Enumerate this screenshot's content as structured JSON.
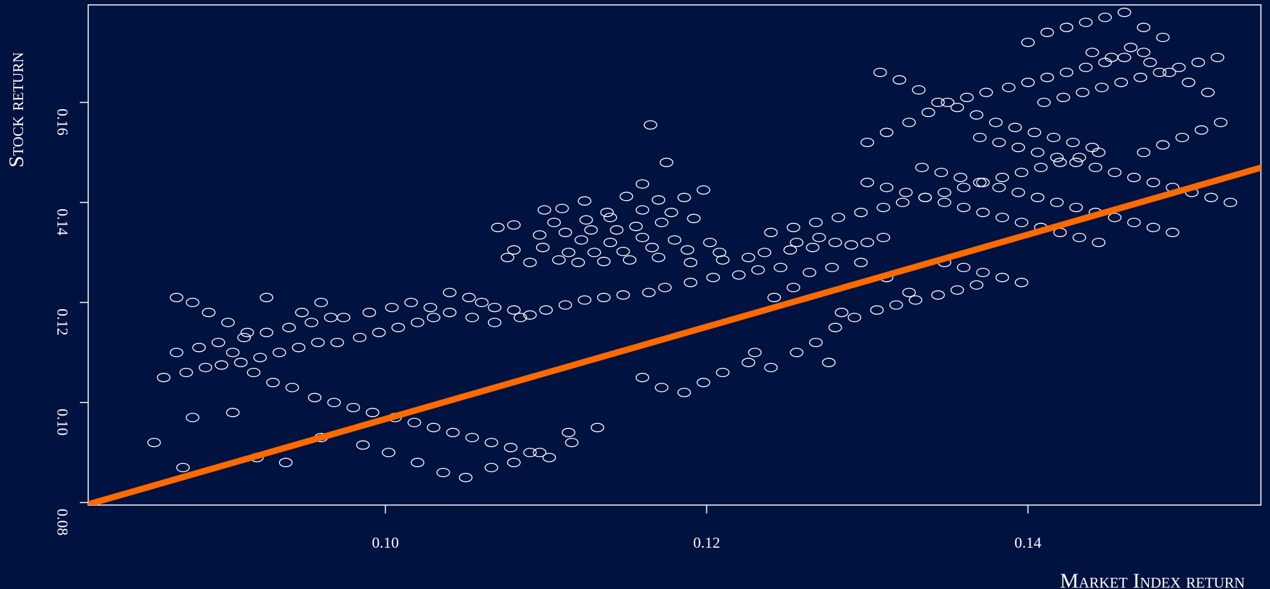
{
  "chart_data": {
    "type": "scatter",
    "title": "",
    "xlabel": "Market Index return",
    "ylabel": "Stock return",
    "xlim": [
      0.0815,
      0.1545
    ],
    "ylim": [
      0.0795,
      0.1795
    ],
    "xticks": [
      0.1,
      0.12,
      0.14
    ],
    "xtick_labels": [
      "0.10",
      "0.12",
      "0.14"
    ],
    "yticks": [
      0.08,
      0.1,
      0.12,
      0.14,
      0.16
    ],
    "ytick_labels": [
      "0.08",
      "0.10",
      "0.12",
      "0.14",
      "0.16"
    ],
    "grid": false,
    "fit_line": {
      "intercept": 0.0045,
      "slope": 0.922
    },
    "colors": {
      "background": "#001240",
      "points": "#ffffff",
      "fit_line": "#ff6a00",
      "axes": "#ffffff"
    },
    "series": [
      {
        "marker": "open-ellipse",
        "points": [
          [
            0.1175,
            0.148
          ],
          [
            0.1165,
            0.1555
          ],
          [
            0.116,
            0.1437
          ],
          [
            0.1198,
            0.1425
          ],
          [
            0.1186,
            0.141
          ],
          [
            0.115,
            0.1412
          ],
          [
            0.117,
            0.1405
          ],
          [
            0.1124,
            0.1403
          ],
          [
            0.1138,
            0.138
          ],
          [
            0.111,
            0.1388
          ],
          [
            0.1099,
            0.1385
          ],
          [
            0.1178,
            0.138
          ],
          [
            0.116,
            0.1385
          ],
          [
            0.114,
            0.137
          ],
          [
            0.1125,
            0.1365
          ],
          [
            0.1105,
            0.136
          ],
          [
            0.108,
            0.1355
          ],
          [
            0.107,
            0.135
          ],
          [
            0.1192,
            0.1368
          ],
          [
            0.1172,
            0.136
          ],
          [
            0.1156,
            0.1352
          ],
          [
            0.1144,
            0.1345
          ],
          [
            0.1128,
            0.1345
          ],
          [
            0.1112,
            0.134
          ],
          [
            0.1096,
            0.1335
          ],
          [
            0.1122,
            0.1325
          ],
          [
            0.114,
            0.132
          ],
          [
            0.116,
            0.133
          ],
          [
            0.118,
            0.1325
          ],
          [
            0.1202,
            0.132
          ],
          [
            0.1208,
            0.13
          ],
          [
            0.1188,
            0.1305
          ],
          [
            0.1166,
            0.131
          ],
          [
            0.1148,
            0.1302
          ],
          [
            0.113,
            0.13
          ],
          [
            0.1114,
            0.13
          ],
          [
            0.1098,
            0.131
          ],
          [
            0.108,
            0.1305
          ],
          [
            0.1076,
            0.129
          ],
          [
            0.109,
            0.128
          ],
          [
            0.1108,
            0.1285
          ],
          [
            0.112,
            0.128
          ],
          [
            0.1136,
            0.1282
          ],
          [
            0.1152,
            0.1285
          ],
          [
            0.117,
            0.129
          ],
          [
            0.119,
            0.128
          ],
          [
            0.121,
            0.1285
          ],
          [
            0.1226,
            0.129
          ],
          [
            0.1236,
            0.13
          ],
          [
            0.1252,
            0.1305
          ],
          [
            0.1266,
            0.131
          ],
          [
            0.128,
            0.132
          ],
          [
            0.129,
            0.1315
          ],
          [
            0.13,
            0.132
          ],
          [
            0.131,
            0.133
          ],
          [
            0.127,
            0.133
          ],
          [
            0.1256,
            0.132
          ],
          [
            0.104,
            0.122
          ],
          [
            0.1052,
            0.121
          ],
          [
            0.106,
            0.12
          ],
          [
            0.1068,
            0.119
          ],
          [
            0.108,
            0.1185
          ],
          [
            0.109,
            0.1175
          ],
          [
            0.11,
            0.1185
          ],
          [
            0.1112,
            0.1195
          ],
          [
            0.1124,
            0.1205
          ],
          [
            0.1136,
            0.121
          ],
          [
            0.1148,
            0.1215
          ],
          [
            0.1164,
            0.122
          ],
          [
            0.1174,
            0.123
          ],
          [
            0.119,
            0.124
          ],
          [
            0.1204,
            0.125
          ],
          [
            0.122,
            0.1255
          ],
          [
            0.1232,
            0.1265
          ],
          [
            0.1246,
            0.127
          ],
          [
            0.0862,
            0.105
          ],
          [
            0.0876,
            0.106
          ],
          [
            0.0888,
            0.107
          ],
          [
            0.0898,
            0.1075
          ],
          [
            0.091,
            0.108
          ],
          [
            0.0922,
            0.109
          ],
          [
            0.0934,
            0.11
          ],
          [
            0.0946,
            0.111
          ],
          [
            0.0958,
            0.112
          ],
          [
            0.097,
            0.112
          ],
          [
            0.0984,
            0.113
          ],
          [
            0.0996,
            0.114
          ],
          [
            0.1008,
            0.115
          ],
          [
            0.102,
            0.116
          ],
          [
            0.103,
            0.117
          ],
          [
            0.087,
            0.11
          ],
          [
            0.0884,
            0.111
          ],
          [
            0.0896,
            0.112
          ],
          [
            0.0912,
            0.113
          ],
          [
            0.0926,
            0.114
          ],
          [
            0.094,
            0.115
          ],
          [
            0.0954,
            0.116
          ],
          [
            0.0966,
            0.117
          ],
          [
            0.0905,
            0.11
          ],
          [
            0.0918,
            0.106
          ],
          [
            0.093,
            0.104
          ],
          [
            0.0942,
            0.103
          ],
          [
            0.0956,
            0.101
          ],
          [
            0.0968,
            0.1
          ],
          [
            0.098,
            0.099
          ],
          [
            0.0992,
            0.098
          ],
          [
            0.1006,
            0.097
          ],
          [
            0.1018,
            0.096
          ],
          [
            0.103,
            0.095
          ],
          [
            0.1042,
            0.094
          ],
          [
            0.1054,
            0.093
          ],
          [
            0.1066,
            0.092
          ],
          [
            0.1078,
            0.091
          ],
          [
            0.109,
            0.09
          ],
          [
            0.1102,
            0.089
          ],
          [
            0.1116,
            0.092
          ],
          [
            0.0856,
            0.092
          ],
          [
            0.0874,
            0.087
          ],
          [
            0.088,
            0.097
          ],
          [
            0.0905,
            0.098
          ],
          [
            0.092,
            0.089
          ],
          [
            0.0938,
            0.088
          ],
          [
            0.096,
            0.093
          ],
          [
            0.0986,
            0.0915
          ],
          [
            0.1002,
            0.09
          ],
          [
            0.102,
            0.088
          ],
          [
            0.1036,
            0.086
          ],
          [
            0.105,
            0.085
          ],
          [
            0.1066,
            0.087
          ],
          [
            0.108,
            0.088
          ],
          [
            0.1096,
            0.09
          ],
          [
            0.1114,
            0.094
          ],
          [
            0.1132,
            0.095
          ],
          [
            0.116,
            0.105
          ],
          [
            0.1172,
            0.103
          ],
          [
            0.1186,
            0.102
          ],
          [
            0.1198,
            0.104
          ],
          [
            0.121,
            0.106
          ],
          [
            0.1226,
            0.108
          ],
          [
            0.124,
            0.107
          ],
          [
            0.1256,
            0.11
          ],
          [
            0.1268,
            0.112
          ],
          [
            0.128,
            0.115
          ],
          [
            0.1292,
            0.117
          ],
          [
            0.1306,
            0.1185
          ],
          [
            0.1318,
            0.1195
          ],
          [
            0.133,
            0.1205
          ],
          [
            0.1344,
            0.1215
          ],
          [
            0.1356,
            0.1225
          ],
          [
            0.1368,
            0.1235
          ],
          [
            0.124,
            0.134
          ],
          [
            0.1254,
            0.135
          ],
          [
            0.1268,
            0.136
          ],
          [
            0.1282,
            0.137
          ],
          [
            0.1296,
            0.138
          ],
          [
            0.131,
            0.139
          ],
          [
            0.1322,
            0.14
          ],
          [
            0.1336,
            0.141
          ],
          [
            0.1348,
            0.142
          ],
          [
            0.136,
            0.143
          ],
          [
            0.1372,
            0.144
          ],
          [
            0.1384,
            0.145
          ],
          [
            0.1396,
            0.146
          ],
          [
            0.1408,
            0.147
          ],
          [
            0.142,
            0.148
          ],
          [
            0.1432,
            0.149
          ],
          [
            0.1444,
            0.15
          ],
          [
            0.13,
            0.152
          ],
          [
            0.1312,
            0.154
          ],
          [
            0.1326,
            0.156
          ],
          [
            0.1338,
            0.158
          ],
          [
            0.135,
            0.16
          ],
          [
            0.1362,
            0.161
          ],
          [
            0.1374,
            0.162
          ],
          [
            0.1388,
            0.163
          ],
          [
            0.14,
            0.164
          ],
          [
            0.1412,
            0.165
          ],
          [
            0.1424,
            0.166
          ],
          [
            0.1436,
            0.167
          ],
          [
            0.1448,
            0.168
          ],
          [
            0.146,
            0.169
          ],
          [
            0.1472,
            0.17
          ],
          [
            0.14,
            0.172
          ],
          [
            0.1412,
            0.174
          ],
          [
            0.1424,
            0.175
          ],
          [
            0.1436,
            0.176
          ],
          [
            0.1448,
            0.177
          ],
          [
            0.146,
            0.178
          ],
          [
            0.1472,
            0.175
          ],
          [
            0.1484,
            0.173
          ],
          [
            0.144,
            0.17
          ],
          [
            0.1452,
            0.169
          ],
          [
            0.1464,
            0.171
          ],
          [
            0.1476,
            0.168
          ],
          [
            0.1488,
            0.166
          ],
          [
            0.15,
            0.164
          ],
          [
            0.1512,
            0.162
          ],
          [
            0.141,
            0.16
          ],
          [
            0.1422,
            0.161
          ],
          [
            0.1434,
            0.162
          ],
          [
            0.1446,
            0.163
          ],
          [
            0.1458,
            0.164
          ],
          [
            0.147,
            0.165
          ],
          [
            0.1482,
            0.166
          ],
          [
            0.1494,
            0.167
          ],
          [
            0.1506,
            0.168
          ],
          [
            0.1518,
            0.169
          ],
          [
            0.152,
            0.156
          ],
          [
            0.1508,
            0.1545
          ],
          [
            0.1496,
            0.153
          ],
          [
            0.1484,
            0.1515
          ],
          [
            0.1472,
            0.15
          ],
          [
            0.137,
            0.153
          ],
          [
            0.1382,
            0.152
          ],
          [
            0.1394,
            0.151
          ],
          [
            0.1406,
            0.15
          ],
          [
            0.1418,
            0.149
          ],
          [
            0.143,
            0.148
          ],
          [
            0.1442,
            0.147
          ],
          [
            0.1454,
            0.146
          ],
          [
            0.1466,
            0.145
          ],
          [
            0.1478,
            0.144
          ],
          [
            0.149,
            0.143
          ],
          [
            0.1502,
            0.142
          ],
          [
            0.1514,
            0.141
          ],
          [
            0.1526,
            0.14
          ],
          [
            0.1334,
            0.147
          ],
          [
            0.1346,
            0.146
          ],
          [
            0.1358,
            0.145
          ],
          [
            0.137,
            0.144
          ],
          [
            0.1382,
            0.143
          ],
          [
            0.1394,
            0.142
          ],
          [
            0.1406,
            0.141
          ],
          [
            0.1418,
            0.14
          ],
          [
            0.143,
            0.139
          ],
          [
            0.1442,
            0.138
          ],
          [
            0.1454,
            0.137
          ],
          [
            0.1466,
            0.136
          ],
          [
            0.1478,
            0.135
          ],
          [
            0.149,
            0.134
          ],
          [
            0.13,
            0.144
          ],
          [
            0.1312,
            0.143
          ],
          [
            0.1324,
            0.142
          ],
          [
            0.1336,
            0.141
          ],
          [
            0.1348,
            0.14
          ],
          [
            0.136,
            0.139
          ],
          [
            0.1372,
            0.138
          ],
          [
            0.1384,
            0.137
          ],
          [
            0.1396,
            0.136
          ],
          [
            0.1408,
            0.135
          ],
          [
            0.142,
            0.134
          ],
          [
            0.1432,
            0.133
          ],
          [
            0.1444,
            0.132
          ],
          [
            0.1308,
            0.166
          ],
          [
            0.132,
            0.1645
          ],
          [
            0.1332,
            0.1625
          ],
          [
            0.1344,
            0.16
          ],
          [
            0.1356,
            0.159
          ],
          [
            0.1368,
            0.1575
          ],
          [
            0.138,
            0.156
          ],
          [
            0.1392,
            0.155
          ],
          [
            0.1404,
            0.154
          ],
          [
            0.1416,
            0.153
          ],
          [
            0.1428,
            0.152
          ],
          [
            0.144,
            0.151
          ],
          [
            0.1348,
            0.128
          ],
          [
            0.136,
            0.127
          ],
          [
            0.1372,
            0.126
          ],
          [
            0.1384,
            0.125
          ],
          [
            0.1396,
            0.124
          ],
          [
            0.1242,
            0.121
          ],
          [
            0.123,
            0.11
          ],
          [
            0.1276,
            0.108
          ],
          [
            0.1284,
            0.118
          ],
          [
            0.1254,
            0.123
          ],
          [
            0.1264,
            0.126
          ],
          [
            0.1278,
            0.127
          ],
          [
            0.1296,
            0.128
          ],
          [
            0.1312,
            0.125
          ],
          [
            0.1326,
            0.122
          ],
          [
            0.087,
            0.121
          ],
          [
            0.088,
            0.12
          ],
          [
            0.089,
            0.118
          ],
          [
            0.0902,
            0.116
          ],
          [
            0.0914,
            0.114
          ],
          [
            0.0926,
            0.121
          ],
          [
            0.0948,
            0.118
          ],
          [
            0.096,
            0.12
          ],
          [
            0.0974,
            0.117
          ],
          [
            0.099,
            0.118
          ],
          [
            0.1004,
            0.119
          ],
          [
            0.1016,
            0.12
          ],
          [
            0.1028,
            0.119
          ],
          [
            0.104,
            0.118
          ],
          [
            0.1054,
            0.117
          ],
          [
            0.1068,
            0.116
          ],
          [
            0.1084,
            0.117
          ]
        ]
      }
    ]
  }
}
